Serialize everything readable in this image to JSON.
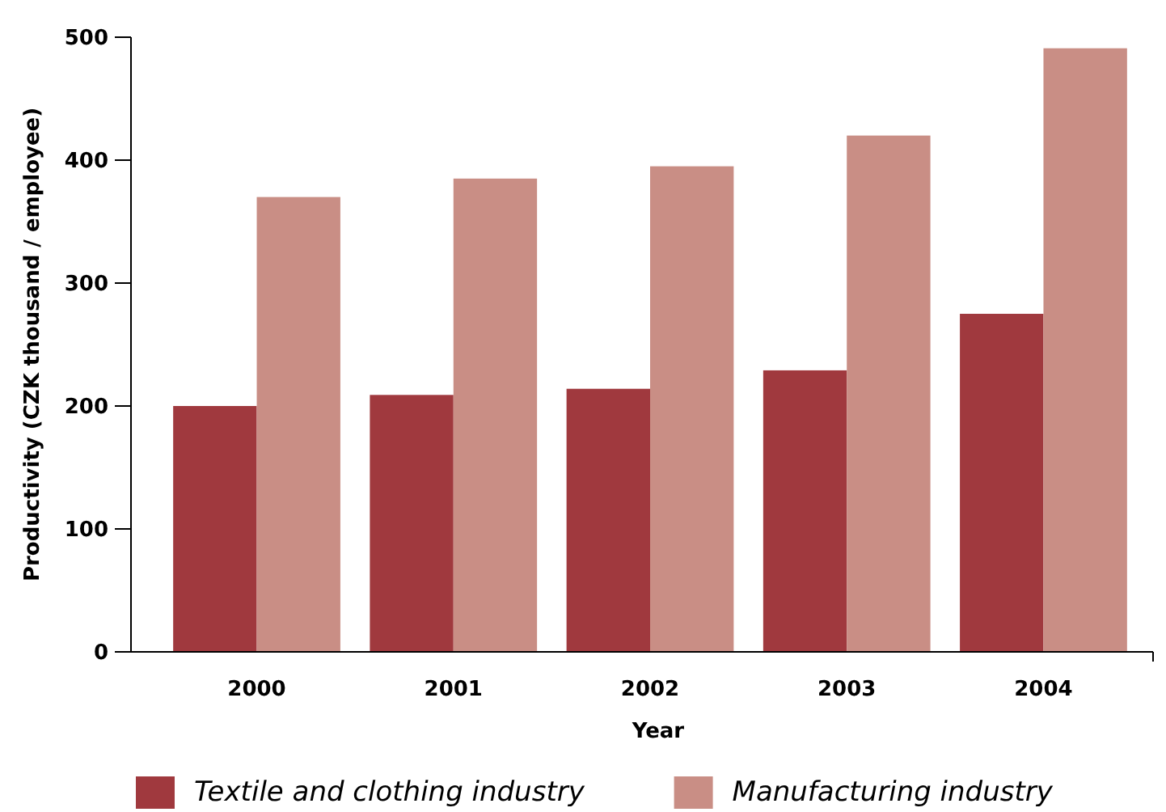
{
  "chart_data": {
    "type": "bar",
    "xlabel": "Year",
    "ylabel": "Productivity (CZK thousand / employee)",
    "categories": [
      "2000",
      "2001",
      "2002",
      "2003",
      "2004"
    ],
    "series": [
      {
        "name": "Textile and clothing industry",
        "color": "#a0393e",
        "values": [
          200,
          209,
          214,
          229,
          275
        ]
      },
      {
        "name": "Manufacturing industry",
        "color": "#c98e85",
        "values": [
          370,
          385,
          395,
          420,
          491
        ]
      }
    ],
    "ylim": [
      0,
      500
    ],
    "yticks": [
      0,
      100,
      200,
      300,
      400,
      500
    ],
    "grid": false,
    "legend": "bottom"
  }
}
